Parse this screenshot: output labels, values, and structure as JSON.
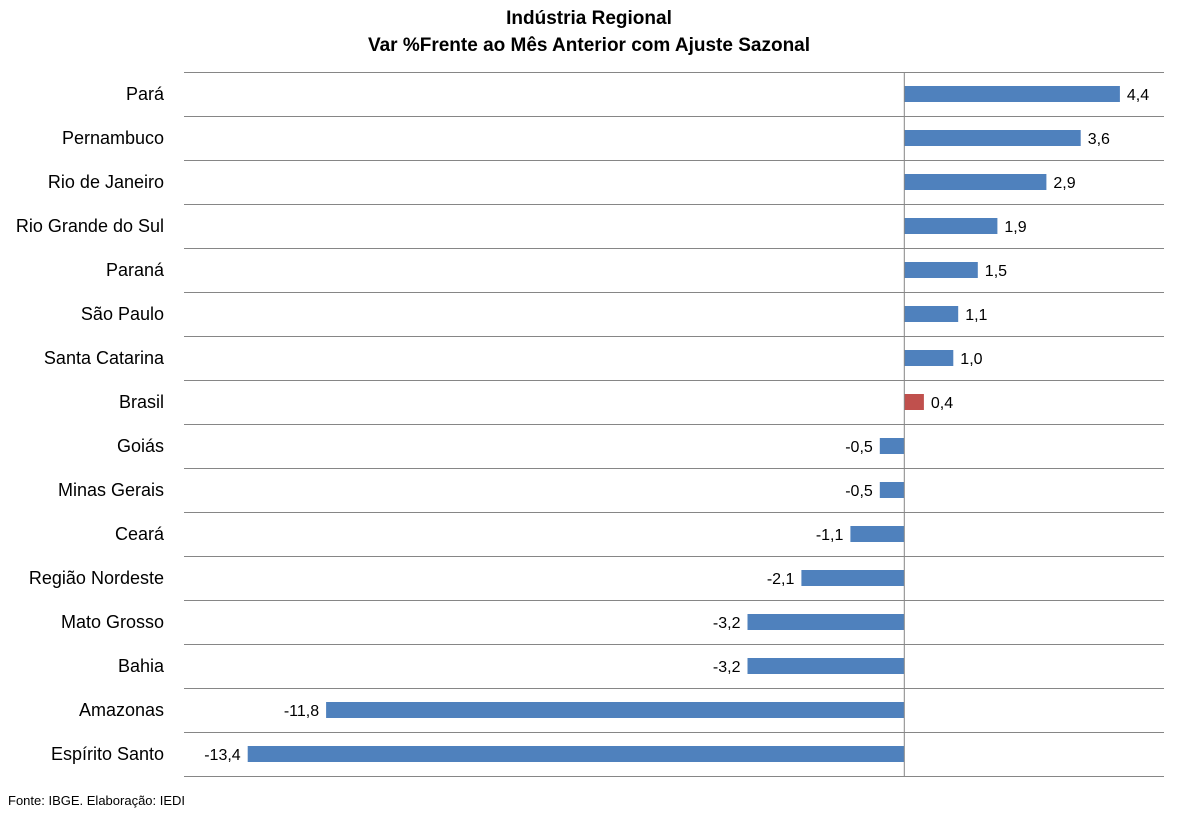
{
  "chart_data": {
    "type": "bar",
    "orientation": "horizontal",
    "title": "Indústria Regional",
    "subtitle": "Var %Frente ao Mês Anterior com Ajuste Sazonal",
    "categories": [
      "Pará",
      "Pernambuco",
      "Rio de Janeiro",
      "Rio Grande do Sul",
      "Paraná",
      "São Paulo",
      "Santa Catarina",
      "Brasil",
      "Goiás",
      "Minas Gerais",
      "Ceará",
      "Região Nordeste",
      "Mato Grosso",
      "Bahia",
      "Amazonas",
      "Espírito Santo"
    ],
    "values": [
      4.4,
      3.6,
      2.9,
      1.9,
      1.5,
      1.1,
      1.0,
      0.4,
      -0.5,
      -0.5,
      -1.1,
      -2.1,
      -3.2,
      -3.2,
      -11.8,
      -13.4
    ],
    "data_labels": [
      "4,4",
      "3,6",
      "2,9",
      "1,9",
      "1,5",
      "1,1",
      "1,0",
      "0,4",
      "-0,5",
      "-0,5",
      "-1,1",
      "-2,1",
      "-3,2",
      "-3,2",
      "-11,8",
      "-13,4"
    ],
    "colors": {
      "default": "#4F81BD",
      "highlight": "#C0504D",
      "highlight_category": "Brasil",
      "gridline": "#868686"
    },
    "xlim": [
      -14.7,
      5.3
    ],
    "grid": true,
    "legend": "none",
    "source": "Fonte: IBGE. Elaboração: IEDI"
  }
}
